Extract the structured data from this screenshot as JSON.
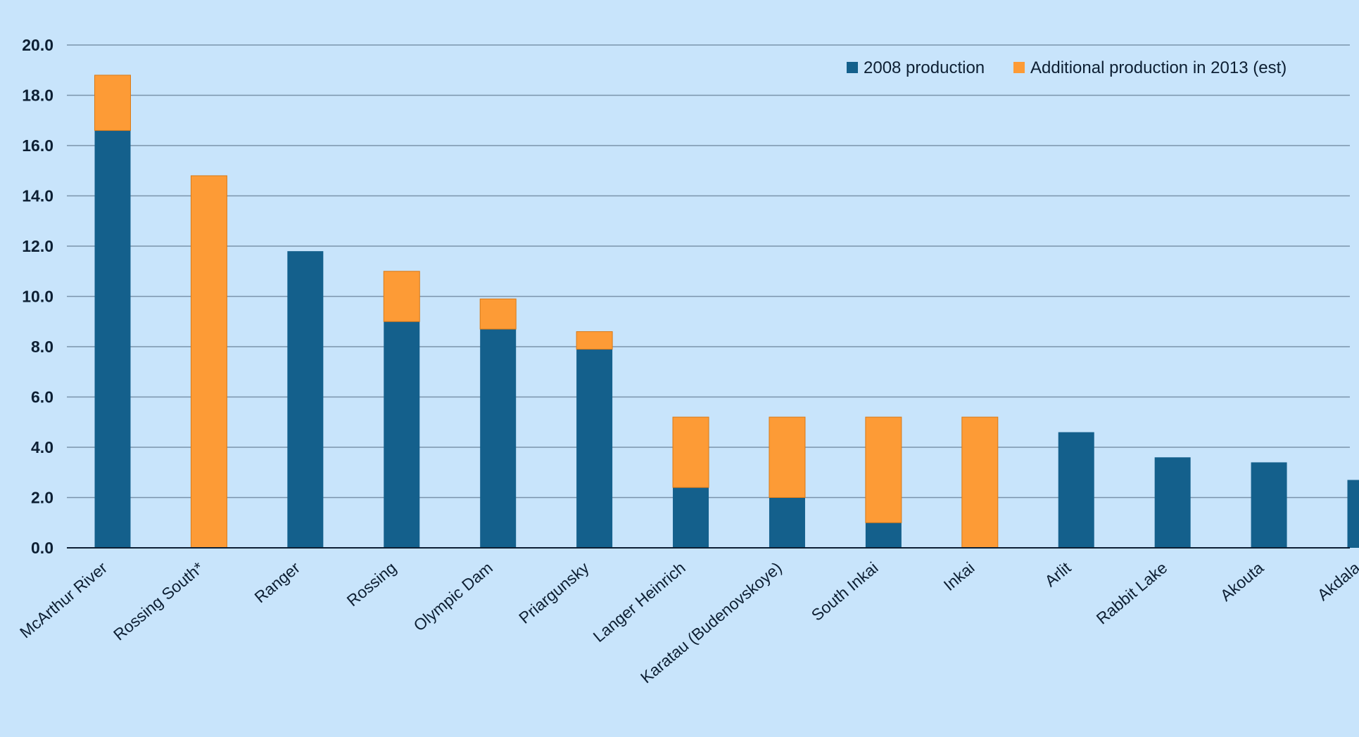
{
  "chart_data": {
    "type": "bar",
    "stacked": true,
    "title": "",
    "xlabel": "",
    "ylabel": "",
    "ylim": [
      0,
      20
    ],
    "yticks": [
      "0.0",
      "2.0",
      "4.0",
      "6.0",
      "8.0",
      "10.0",
      "12.0",
      "14.0",
      "16.0",
      "18.0",
      "20.0"
    ],
    "grid": true,
    "legend_position": "top-right",
    "categories": [
      "McArthur River",
      "Rossing South*",
      "Ranger",
      "Rossing",
      "Olympic Dam",
      "Priargunsky",
      "Langer Heinrich",
      "Karatau (Budenovskoye)",
      "South Inkai",
      "Inkai",
      "Arlit",
      "Rabbit Lake",
      "Akouta",
      "Akdala"
    ],
    "series": [
      {
        "name": "2008 production",
        "color": "#14608c",
        "values": [
          16.6,
          0,
          11.8,
          9.0,
          8.7,
          7.9,
          2.4,
          2.0,
          1.0,
          0,
          4.6,
          3.6,
          3.4,
          2.7
        ]
      },
      {
        "name": "Additional production in 2013 (est)",
        "color": "#fd9b36",
        "values": [
          2.2,
          14.8,
          0,
          2.0,
          1.2,
          0.7,
          2.8,
          3.2,
          4.2,
          5.2,
          0,
          0,
          0,
          0
        ]
      }
    ]
  }
}
